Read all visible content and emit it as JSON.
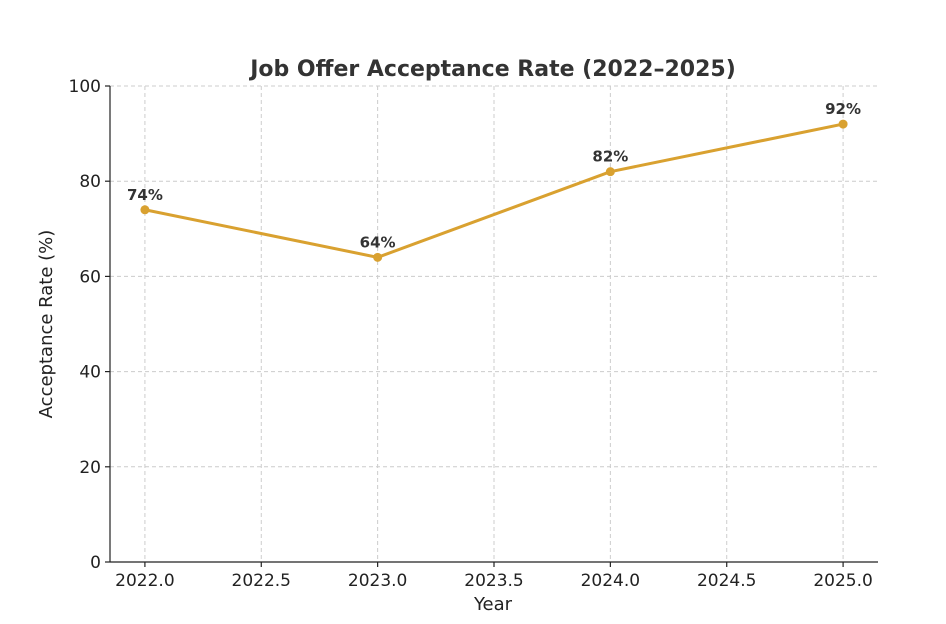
{
  "chart_data": {
    "type": "line",
    "title": "Job Offer Acceptance Rate (2022–2025)",
    "xlabel": "Year",
    "ylabel": "Acceptance Rate (%)",
    "xlim": [
      2021.85,
      2025.15
    ],
    "ylim": [
      0,
      100
    ],
    "xticks": [
      2022.0,
      2022.5,
      2023.0,
      2023.5,
      2024.0,
      2024.5,
      2025.0
    ],
    "xtick_labels": [
      "2022.0",
      "2022.5",
      "2023.0",
      "2023.5",
      "2024.0",
      "2024.5",
      "2025.0"
    ],
    "yticks": [
      0,
      20,
      40,
      60,
      80,
      100
    ],
    "ytick_labels": [
      "0",
      "20",
      "40",
      "60",
      "80",
      "100"
    ],
    "grid": true,
    "series": [
      {
        "color": "#d9a130",
        "x": [
          2022,
          2023,
          2024,
          2025
        ],
        "y": [
          74,
          64,
          82,
          92
        ],
        "labels": [
          "74%",
          "64%",
          "82%",
          "92%"
        ]
      }
    ]
  }
}
